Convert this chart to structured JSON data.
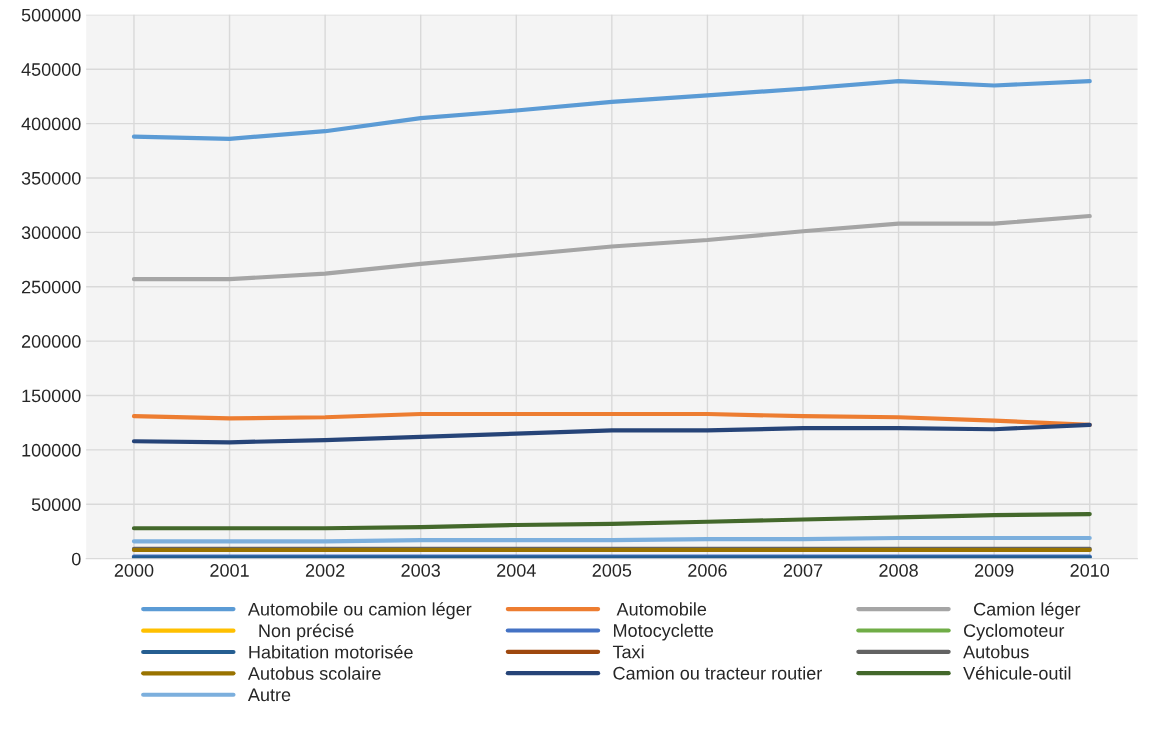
{
  "chart_data": {
    "type": "line",
    "categories": [
      "2000",
      "2001",
      "2002",
      "2003",
      "2004",
      "2005",
      "2006",
      "2007",
      "2008",
      "2009",
      "2010"
    ],
    "series": [
      {
        "name": "Automobile ou camion léger",
        "color": "#5b9bd5",
        "values": [
          388000,
          386000,
          393000,
          405000,
          412000,
          420000,
          426000,
          432000,
          439000,
          435000,
          439000
        ]
      },
      {
        "name": " Automobile",
        "color": "#ed7d31",
        "values": [
          131000,
          129000,
          130000,
          133000,
          133000,
          133000,
          133000,
          131000,
          130000,
          127000,
          123000
        ]
      },
      {
        "name": "  Camion léger",
        "color": "#a5a5a5",
        "values": [
          257000,
          257000,
          262000,
          271000,
          279000,
          287000,
          293000,
          301000,
          308000,
          308000,
          315000
        ]
      },
      {
        "name": "  Non précisé",
        "color": "#ffc000",
        "values": [
          null,
          null,
          null,
          null,
          null,
          null,
          null,
          null,
          null,
          null,
          null
        ]
      },
      {
        "name": "Motocyclette",
        "color": "#4472c4",
        "values": [
          2000,
          2000,
          2000,
          2000,
          2000,
          2000,
          2000,
          2000,
          2000,
          2000,
          2000
        ]
      },
      {
        "name": "Cyclomoteur",
        "color": "#70ad47",
        "values": [
          null,
          null,
          null,
          null,
          null,
          null,
          null,
          null,
          null,
          null,
          null
        ]
      },
      {
        "name": "Habitation motorisée",
        "color": "#255e91",
        "values": [
          1000,
          1000,
          1000,
          1000,
          1000,
          1000,
          1000,
          1000,
          1000,
          1000,
          1000
        ]
      },
      {
        "name": "Taxi",
        "color": "#9e480e",
        "values": [
          null,
          null,
          null,
          null,
          null,
          null,
          null,
          null,
          null,
          null,
          null
        ]
      },
      {
        "name": "Autobus",
        "color": "#636363",
        "values": [
          9000,
          9000,
          9000,
          9000,
          9000,
          9000,
          9000,
          9000,
          9000,
          9000,
          9000
        ]
      },
      {
        "name": "Autobus scolaire",
        "color": "#997300",
        "values": [
          8000,
          8000,
          8000,
          8000,
          8000,
          8000,
          8000,
          8000,
          8000,
          8000,
          8000
        ]
      },
      {
        "name": "Camion ou tracteur routier",
        "color": "#264478",
        "values": [
          108000,
          107000,
          109000,
          112000,
          115000,
          118000,
          118000,
          120000,
          120000,
          119000,
          123000
        ]
      },
      {
        "name": "Véhicule-outil",
        "color": "#43682b",
        "values": [
          28000,
          28000,
          28000,
          29000,
          31000,
          32000,
          34000,
          36000,
          38000,
          40000,
          41000
        ]
      },
      {
        "name": "Autre",
        "color": "#7cafdd",
        "values": [
          16000,
          16000,
          16000,
          17000,
          17000,
          17000,
          18000,
          18000,
          19000,
          19000,
          19000
        ]
      }
    ],
    "ylim": [
      0,
      500000
    ],
    "yticks": [
      0,
      50000,
      100000,
      150000,
      200000,
      250000,
      300000,
      350000,
      400000,
      450000,
      500000
    ],
    "grid": true,
    "legend": "bottom",
    "marker": "none",
    "line_style": "solid"
  }
}
